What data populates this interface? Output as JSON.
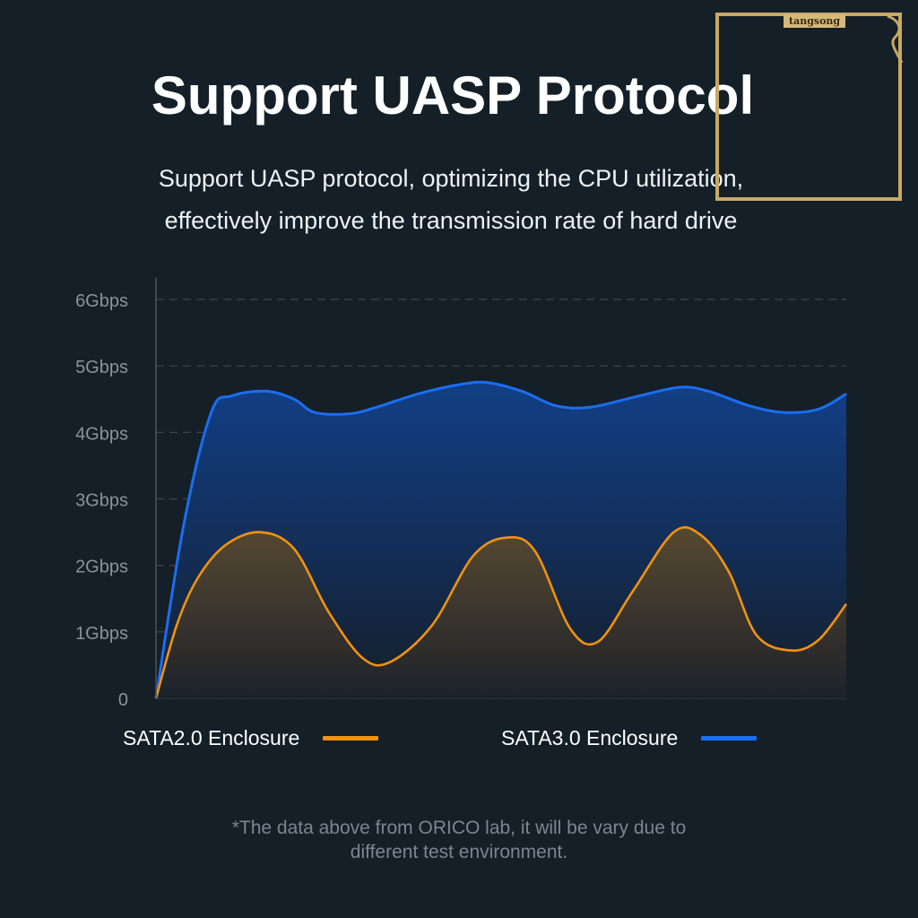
{
  "header": {
    "title": "Support UASP Protocol",
    "subtitle_line1": "Support UASP protocol, optimizing the CPU utilization,",
    "subtitle_line2": "effectively improve the transmission rate of hard drive"
  },
  "chart_data": {
    "type": "area",
    "ylim": [
      0,
      6
    ],
    "xlim": [
      0,
      100
    ],
    "grid": true,
    "y_ticks": [
      {
        "value": 0,
        "label": "0"
      },
      {
        "value": 1,
        "label": "1Gbps"
      },
      {
        "value": 2,
        "label": "2Gbps"
      },
      {
        "value": 3,
        "label": "3Gbps"
      },
      {
        "value": 4,
        "label": "4Gbps"
      },
      {
        "value": 5,
        "label": "5Gbps"
      },
      {
        "value": 6,
        "label": "6Gbps"
      }
    ],
    "series": [
      {
        "name": "SATA3.0 Enclosure",
        "color": "#1a6ef0",
        "x": [
          0,
          4,
          8,
          11,
          16,
          20,
          23,
          28,
          32,
          38,
          44,
          48,
          53,
          58,
          63,
          70,
          76,
          80,
          86,
          91,
          96,
          100
        ],
        "y": [
          0,
          2.6,
          4.3,
          4.55,
          4.62,
          4.5,
          4.3,
          4.28,
          4.38,
          4.58,
          4.72,
          4.75,
          4.62,
          4.4,
          4.38,
          4.55,
          4.68,
          4.62,
          4.4,
          4.3,
          4.35,
          4.58
        ]
      },
      {
        "name": "SATA2.0 Enclosure",
        "color": "#f0920f",
        "x": [
          0,
          3,
          6,
          10,
          15,
          20,
          25,
          30,
          34,
          40,
          46,
          51,
          55,
          60,
          64,
          69,
          75,
          79,
          83,
          87,
          92,
          96,
          100
        ],
        "y": [
          0,
          1.1,
          1.8,
          2.3,
          2.5,
          2.25,
          1.3,
          0.6,
          0.55,
          1.1,
          2.15,
          2.42,
          2.2,
          1.05,
          0.85,
          1.6,
          2.5,
          2.45,
          1.9,
          0.95,
          0.72,
          0.88,
          1.42
        ]
      }
    ]
  },
  "legend": {
    "sata2_label": "SATA2.0 Enclosure",
    "sata3_label": "SATA3.0 Enclosure",
    "sata2_color": "#f0920f",
    "sata3_color": "#1a6ef0"
  },
  "footnote": {
    "line1": "*The data above from ORICO lab, it will be vary due to",
    "line2": "different test environment."
  },
  "watermark": {
    "label": "tangsong"
  }
}
